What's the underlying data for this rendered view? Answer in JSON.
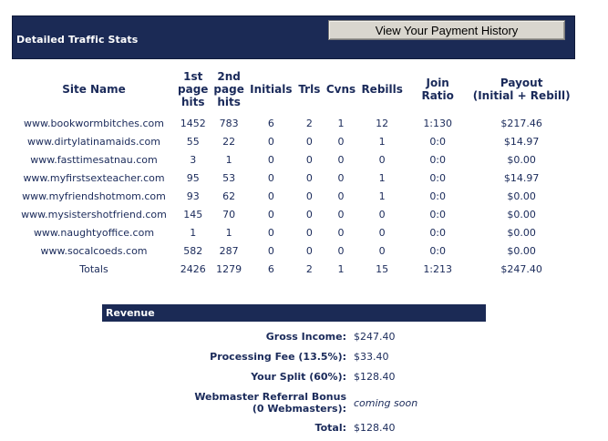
{
  "header": {
    "title": "Detailed Traffic Stats",
    "payment_button": "View Your Payment History"
  },
  "stats_table": {
    "columns": [
      [
        "Site Name"
      ],
      [
        "1st",
        "page",
        "hits"
      ],
      [
        "2nd",
        "page",
        "hits"
      ],
      [
        "Initials"
      ],
      [
        "Trls"
      ],
      [
        "Cvns"
      ],
      [
        "Rebills"
      ],
      [
        "Join Ratio"
      ],
      [
        "Payout",
        "(Initial + Rebill)"
      ]
    ],
    "rows": [
      [
        "www.bookwormbitches.com",
        "1452",
        "783",
        "6",
        "2",
        "1",
        "12",
        "1:130",
        "$217.46"
      ],
      [
        "www.dirtylatinamaids.com",
        "55",
        "22",
        "0",
        "0",
        "0",
        "1",
        "0:0",
        "$14.97"
      ],
      [
        "www.fasttimesatnau.com",
        "3",
        "1",
        "0",
        "0",
        "0",
        "0",
        "0:0",
        "$0.00"
      ],
      [
        "www.myfirstsexteacher.com",
        "95",
        "53",
        "0",
        "0",
        "0",
        "1",
        "0:0",
        "$14.97"
      ],
      [
        "www.myfriendshotmom.com",
        "93",
        "62",
        "0",
        "0",
        "0",
        "1",
        "0:0",
        "$0.00"
      ],
      [
        "www.mysistershotfriend.com",
        "145",
        "70",
        "0",
        "0",
        "0",
        "0",
        "0:0",
        "$0.00"
      ],
      [
        "www.naughtyoffice.com",
        "1",
        "1",
        "0",
        "0",
        "0",
        "0",
        "0:0",
        "$0.00"
      ],
      [
        "www.socalcoeds.com",
        "582",
        "287",
        "0",
        "0",
        "0",
        "0",
        "0:0",
        "$0.00"
      ]
    ],
    "totals": [
      "Totals",
      "2426",
      "1279",
      "6",
      "2",
      "1",
      "15",
      "1:213",
      "$247.40"
    ]
  },
  "revenue": {
    "title": "Revenue",
    "items": [
      {
        "label": [
          "Gross Income:"
        ],
        "value": "$247.40"
      },
      {
        "label": [
          "Processing Fee (13.5%):"
        ],
        "value": "$33.40"
      },
      {
        "label": [
          "Your Split (60%):"
        ],
        "value": "$128.40"
      },
      {
        "label": [
          "Webmaster Referral Bonus",
          "(0 Webmasters):"
        ],
        "value": "coming soon"
      },
      {
        "label": [
          "Total:"
        ],
        "value": "$128.40"
      }
    ]
  }
}
